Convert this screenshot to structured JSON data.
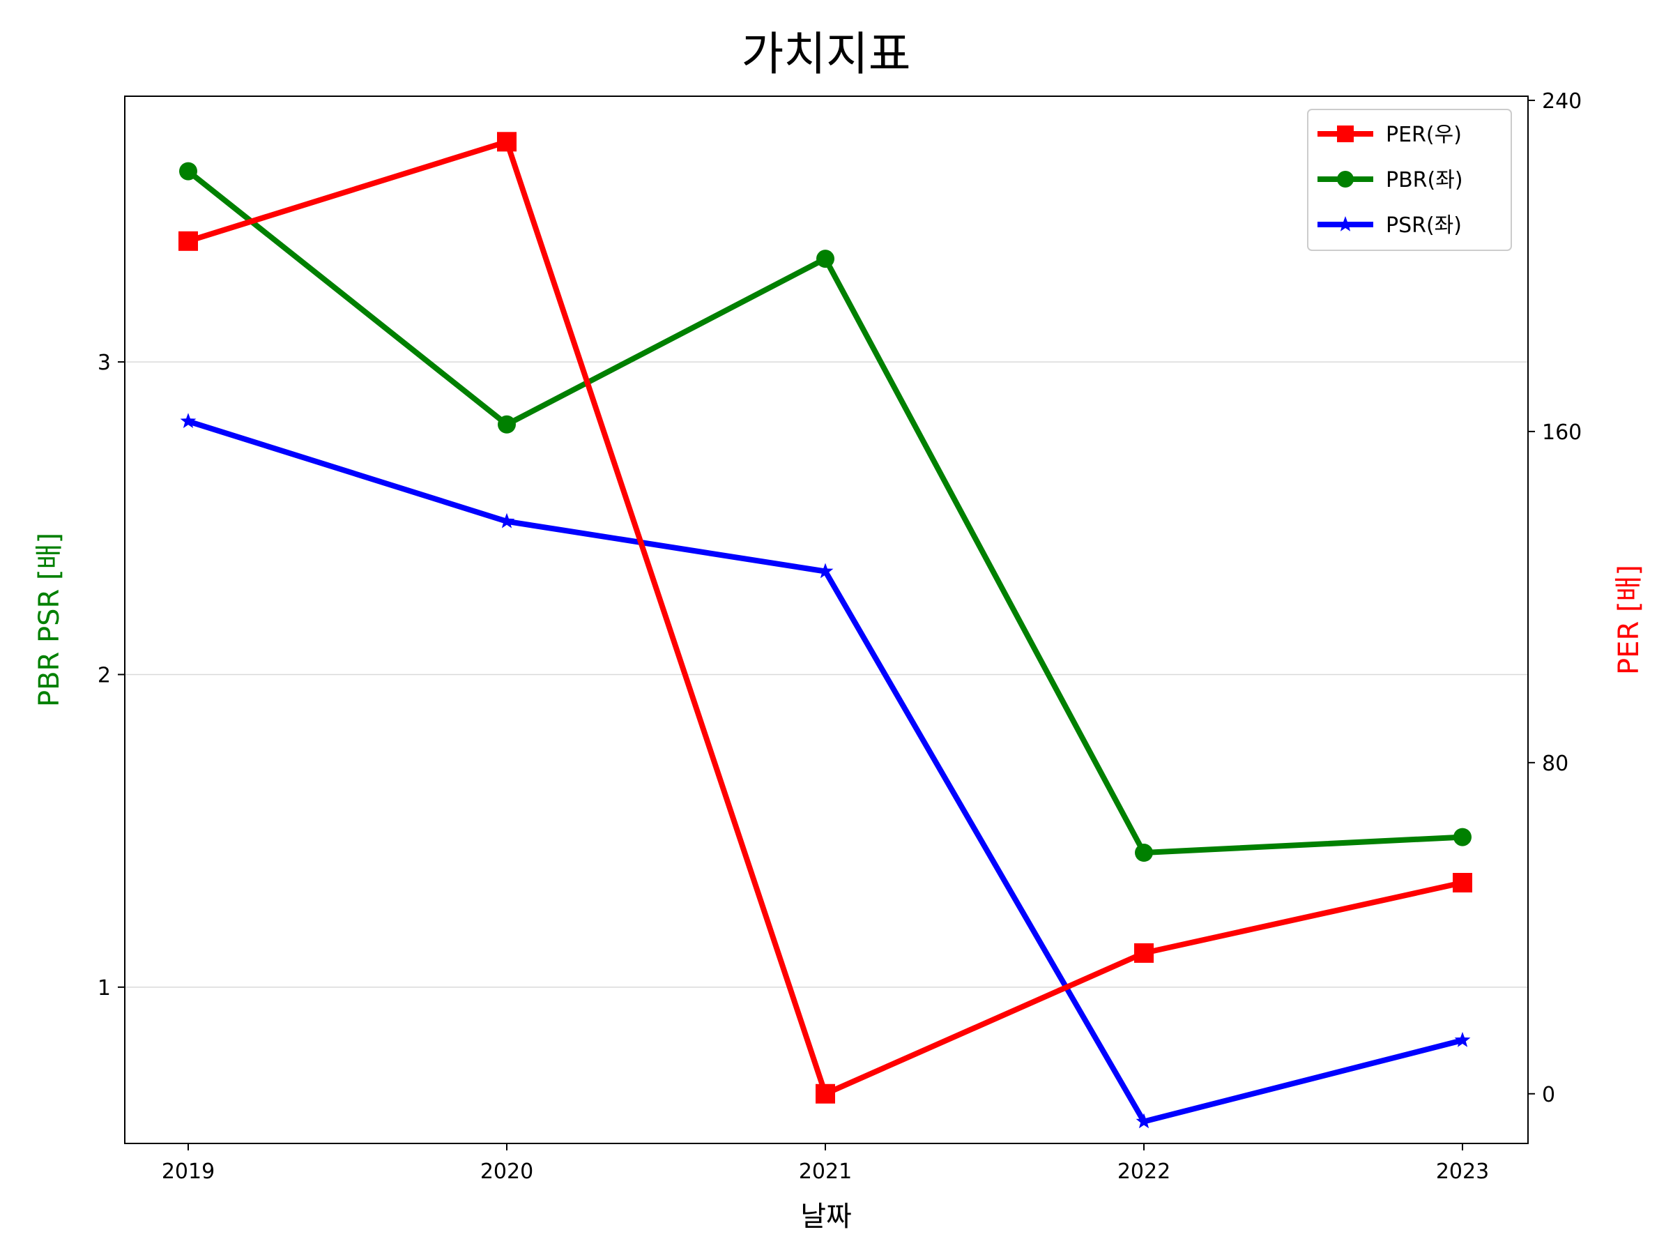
{
  "chart_data": {
    "type": "line",
    "title": "가치지표",
    "xlabel": "날짜",
    "ylabel_left": "PBR PSR [배]",
    "ylabel_right": "PER [배]",
    "x": [
      "2019",
      "2020",
      "2021",
      "2022",
      "2023"
    ],
    "ylim_left": [
      0.5,
      3.85
    ],
    "ylim_right": [
      -12,
      241
    ],
    "yticks_left": [
      "1",
      "2",
      "3"
    ],
    "yticks_right": [
      "0",
      "80",
      "160",
      "240"
    ],
    "grid": "horizontal",
    "legend_position": "top-right",
    "series": [
      {
        "name": "PER(우)",
        "axis": "right",
        "color": "#ff0000",
        "marker": "square",
        "values": [
          206,
          230,
          0,
          34,
          51
        ]
      },
      {
        "name": "PBR(좌)",
        "axis": "left",
        "color": "#008000",
        "marker": "circle",
        "values": [
          3.61,
          2.8,
          3.33,
          1.43,
          1.48
        ]
      },
      {
        "name": "PSR(좌)",
        "axis": "left",
        "color": "#0000ff",
        "marker": "star",
        "values": [
          2.81,
          2.49,
          2.33,
          0.57,
          0.83
        ]
      }
    ]
  }
}
